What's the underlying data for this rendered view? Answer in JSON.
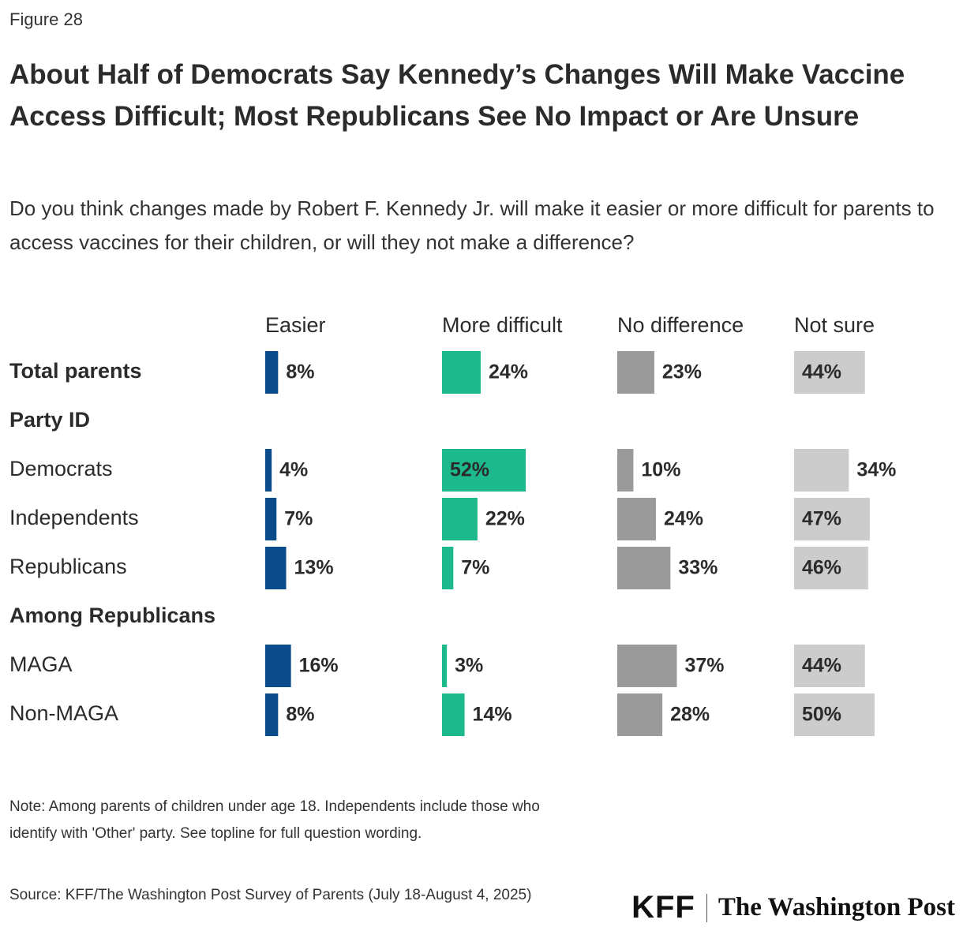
{
  "chart_data": {
    "type": "bar",
    "orientation": "horizontal",
    "figure_label": "Figure 28",
    "title": "About Half of Democrats Say Kennedy’s Changes Will Make Vaccine Access Difficult; Most Republicans See No Impact or Are Unsure",
    "subtitle": "Do you think changes made by Robert F. Kennedy Jr. will make it easier or more difficult for parents to access vaccines for their children, or will they not make a difference?",
    "categories": [
      "Total parents",
      "Party ID",
      "Democrats",
      "Independents",
      "Republicans",
      "Among Republicans",
      "MAGA",
      "Non-MAGA"
    ],
    "series": [
      {
        "name": "Easier",
        "color": "#0a4b8c",
        "values": [
          8,
          null,
          4,
          7,
          13,
          null,
          16,
          8
        ],
        "value_labels": [
          "8%",
          null,
          "4%",
          "7%",
          "13%",
          null,
          "16%",
          "8%"
        ]
      },
      {
        "name": "More difficult",
        "color": "#1cb98c",
        "values": [
          24,
          null,
          52,
          22,
          7,
          null,
          3,
          14
        ],
        "value_labels": [
          "24%",
          null,
          "52%",
          "22%",
          "7%",
          null,
          "3%",
          "14%"
        ]
      },
      {
        "name": "No difference",
        "color": "#9a9a9a",
        "values": [
          23,
          null,
          10,
          24,
          33,
          null,
          37,
          28
        ],
        "value_labels": [
          "23%",
          null,
          "10%",
          "24%",
          "33%",
          null,
          "37%",
          "28%"
        ]
      },
      {
        "name": "Not sure",
        "color": "#cccccc",
        "values": [
          44,
          null,
          34,
          47,
          46,
          null,
          44,
          50
        ],
        "value_labels": [
          "44%",
          null,
          "34%",
          "47%",
          "46%",
          null,
          "44%",
          "50%"
        ]
      }
    ],
    "note": "Note: Among parents of children under age 18. Independents include those who identify with 'Other' party. See topline for full question wording.",
    "source": "Source: KFF/The Washington Post Survey of Parents (July 18-August 4, 2025)",
    "logos": [
      "KFF",
      "The Washington Post"
    ]
  }
}
